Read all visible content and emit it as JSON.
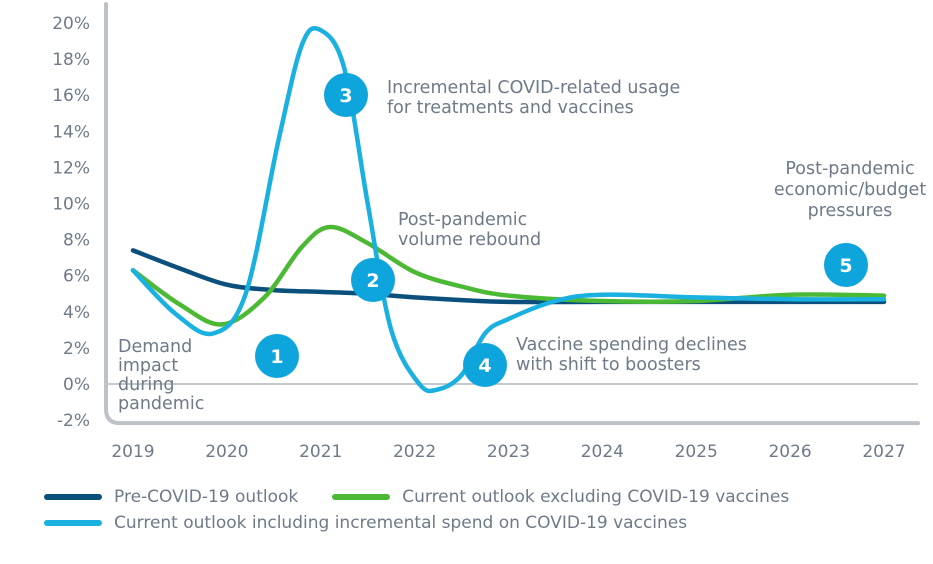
{
  "chart_data": {
    "type": "line",
    "title": "",
    "xlabel": "",
    "ylabel": "",
    "x": [
      2019,
      2020,
      2021,
      2022,
      2023,
      2024,
      2025,
      2026,
      2027
    ],
    "x_tick_labels": [
      "2019",
      "2020",
      "2021",
      "2022",
      "2023",
      "2024",
      "2025",
      "2026",
      "2027"
    ],
    "ylim": [
      -2,
      20
    ],
    "y_ticks": [
      -2,
      0,
      2,
      4,
      6,
      8,
      10,
      12,
      14,
      16,
      18,
      20
    ],
    "y_tick_labels": [
      "-2%",
      "0%",
      "2%",
      "4%",
      "6%",
      "8%",
      "10%",
      "12%",
      "14%",
      "16%",
      "18%",
      "20%"
    ],
    "zero_line": true,
    "grid": false,
    "legend_position": "bottom",
    "series": [
      {
        "name": "Pre-COVID-19 outlook",
        "color": "#0b4f7c",
        "points": [
          [
            2019,
            7.4
          ],
          [
            2019.5,
            6.4
          ],
          [
            2020,
            5.5
          ],
          [
            2020.5,
            5.2
          ],
          [
            2021,
            5.1
          ],
          [
            2021.5,
            5.0
          ],
          [
            2022,
            4.8
          ],
          [
            2022.5,
            4.65
          ],
          [
            2023,
            4.55
          ],
          [
            2024,
            4.55
          ],
          [
            2025,
            4.55
          ],
          [
            2026,
            4.55
          ],
          [
            2027,
            4.55
          ]
        ]
      },
      {
        "name": "Current outlook excluding COVID-19 vaccines",
        "color": "#4cb935",
        "points": [
          [
            2019,
            6.3
          ],
          [
            2019.5,
            4.4
          ],
          [
            2019.95,
            3.3
          ],
          [
            2020.4,
            4.8
          ],
          [
            2020.8,
            7.6
          ],
          [
            2021.1,
            8.7
          ],
          [
            2021.5,
            7.8
          ],
          [
            2022,
            6.2
          ],
          [
            2022.5,
            5.4
          ],
          [
            2023,
            4.9
          ],
          [
            2024,
            4.6
          ],
          [
            2025,
            4.6
          ],
          [
            2026,
            4.95
          ],
          [
            2027,
            4.9
          ]
        ]
      },
      {
        "name": "Current outlook including incremental spend on COVID-19 vaccines",
        "color": "#1ab0e0",
        "points": [
          [
            2019,
            6.3
          ],
          [
            2019.45,
            3.9
          ],
          [
            2019.85,
            2.8
          ],
          [
            2020.2,
            5.0
          ],
          [
            2020.55,
            13.5
          ],
          [
            2020.8,
            18.8
          ],
          [
            2021,
            19.6
          ],
          [
            2021.25,
            17.5
          ],
          [
            2021.5,
            10.0
          ],
          [
            2021.75,
            3.0
          ],
          [
            2022.05,
            0.0
          ],
          [
            2022.25,
            -0.3
          ],
          [
            2022.5,
            0.5
          ],
          [
            2022.75,
            2.8
          ],
          [
            2023,
            3.6
          ],
          [
            2023.5,
            4.6
          ],
          [
            2024,
            4.95
          ],
          [
            2025,
            4.8
          ],
          [
            2026,
            4.7
          ],
          [
            2027,
            4.7
          ]
        ]
      }
    ],
    "annotations": [
      {
        "number": "1",
        "text_lines": [
          "Demand",
          "impact",
          "during",
          "pandemic"
        ]
      },
      {
        "number": "2",
        "text_lines": [
          "Post-pandemic",
          "volume rebound"
        ]
      },
      {
        "number": "3",
        "text_lines": [
          "Incremental COVID-related usage",
          "for treatments and vaccines"
        ]
      },
      {
        "number": "4",
        "text_lines": [
          "Vaccine spending declines",
          "with shift to boosters"
        ]
      },
      {
        "number": "5",
        "text_lines": [
          "Post-pandemic",
          "economic/budget",
          "pressures"
        ]
      }
    ],
    "badge_color": "#0ea5dc"
  }
}
